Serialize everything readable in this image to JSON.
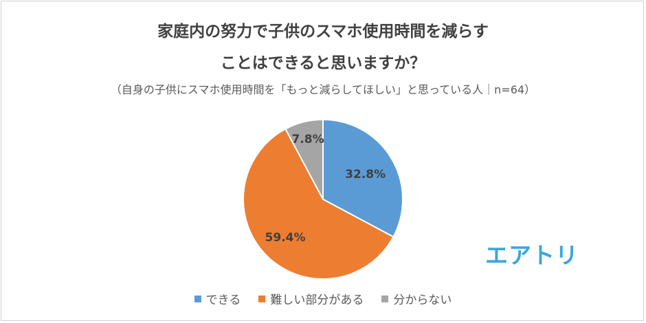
{
  "title_line1": "家庭内の努力で子供のスマホ使用時間を減らす",
  "title_line2": "ことはできると思いますか？",
  "subtitle": "（自身の子供にスマホ使用時間を「もっと減らしてほしい」と思っている人｜n=64）",
  "logo_text": "エアトリ",
  "chart_data": {
    "type": "pie",
    "title": "家庭内の努力で子供のスマホ使用時間を減らすことはできると思いますか？",
    "legend_position": "bottom",
    "slices": [
      {
        "label": "できる",
        "value": 32.8,
        "display": "32.8%",
        "color": "#5b9bd5"
      },
      {
        "label": "難しい部分がある",
        "value": 59.4,
        "display": "59.4%",
        "color": "#ed7d31"
      },
      {
        "label": "分からない",
        "value": 7.8,
        "display": "7.8%",
        "color": "#a5a5a5"
      }
    ]
  }
}
